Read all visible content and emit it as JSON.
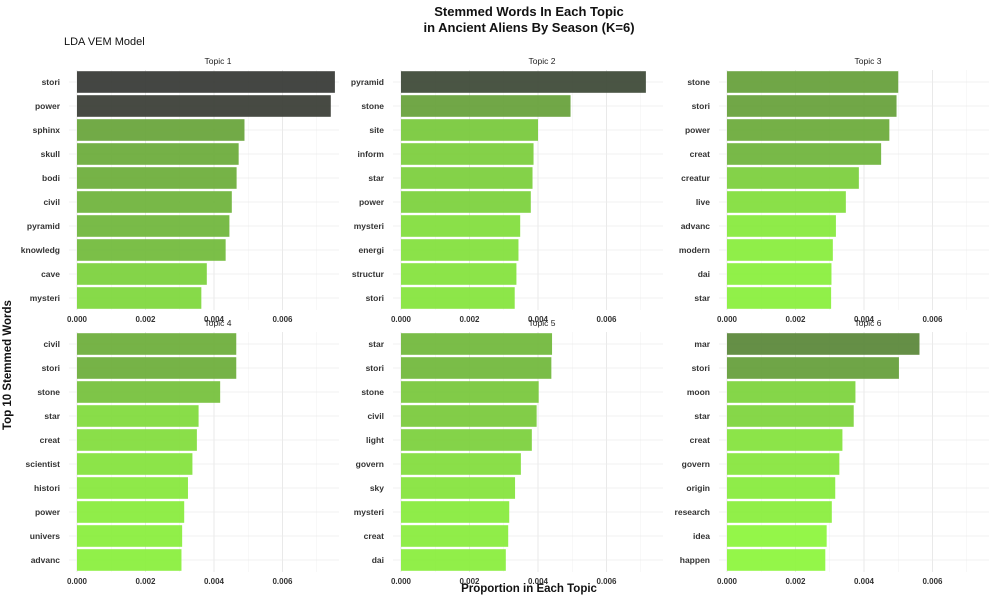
{
  "title_line1": "Stemmed Words In Each Topic",
  "title_line2": "in Ancient Aliens By Season (K=6)",
  "subtitle": "LDA VEM Model",
  "chart_data": {
    "type": "bar",
    "orientation": "horizontal",
    "title": "Stemmed Words In Each Topic in Ancient Aliens By Season (K=6)",
    "subtitle": "LDA VEM Model",
    "xlabel": "Proportion in Each Topic",
    "ylabel": "Top 10 Stemmed Words",
    "xlim": [
      0,
      0.0075
    ],
    "xticks": [
      "0.000",
      "0.002",
      "0.004",
      "0.006"
    ],
    "xtick_values": [
      0,
      0.002,
      0.004,
      0.006
    ],
    "grid": true,
    "color_low": "#8bf53a",
    "color_high": "#333333",
    "panels": [
      {
        "name": "Topic 1",
        "categories": [
          "stori",
          "power",
          "sphinx",
          "skull",
          "bodi",
          "civil",
          "pyramid",
          "knowledg",
          "cave",
          "mysteri"
        ],
        "values": [
          0.00753,
          0.00741,
          0.00489,
          0.00472,
          0.00466,
          0.00452,
          0.00445,
          0.00434,
          0.00379,
          0.00363
        ]
      },
      {
        "name": "Topic 2",
        "categories": [
          "pyramid",
          "stone",
          "site",
          "inform",
          "star",
          "power",
          "mysteri",
          "energi",
          "structur",
          "stori"
        ],
        "values": [
          0.00715,
          0.00495,
          0.004,
          0.00387,
          0.00384,
          0.00379,
          0.00348,
          0.00343,
          0.00337,
          0.00332
        ]
      },
      {
        "name": "Topic 3",
        "categories": [
          "stone",
          "stori",
          "power",
          "creat",
          "creatur",
          "live",
          "advanc",
          "modern",
          "dai",
          "star"
        ],
        "values": [
          0.005,
          0.00495,
          0.00474,
          0.0045,
          0.00385,
          0.00347,
          0.00318,
          0.00309,
          0.00305,
          0.00304
        ]
      },
      {
        "name": "Topic 4",
        "categories": [
          "civil",
          "stori",
          "stone",
          "star",
          "creat",
          "scientist",
          "histori",
          "power",
          "univers",
          "advanc"
        ],
        "values": [
          0.00465,
          0.00465,
          0.00418,
          0.00355,
          0.0035,
          0.00337,
          0.00324,
          0.00313,
          0.00307,
          0.00305
        ]
      },
      {
        "name": "Topic 5",
        "categories": [
          "star",
          "stori",
          "stone",
          "civil",
          "light",
          "govern",
          "sky",
          "mysteri",
          "creat",
          "dai"
        ],
        "values": [
          0.00441,
          0.00439,
          0.00402,
          0.00396,
          0.00382,
          0.0035,
          0.00333,
          0.00316,
          0.00313,
          0.00306
        ]
      },
      {
        "name": "Topic 6",
        "categories": [
          "mar",
          "stori",
          "moon",
          "star",
          "creat",
          "govern",
          "origin",
          "research",
          "idea",
          "happen"
        ],
        "values": [
          0.00562,
          0.00502,
          0.00375,
          0.0037,
          0.00337,
          0.00328,
          0.00316,
          0.00306,
          0.00291,
          0.00287
        ]
      }
    ]
  }
}
